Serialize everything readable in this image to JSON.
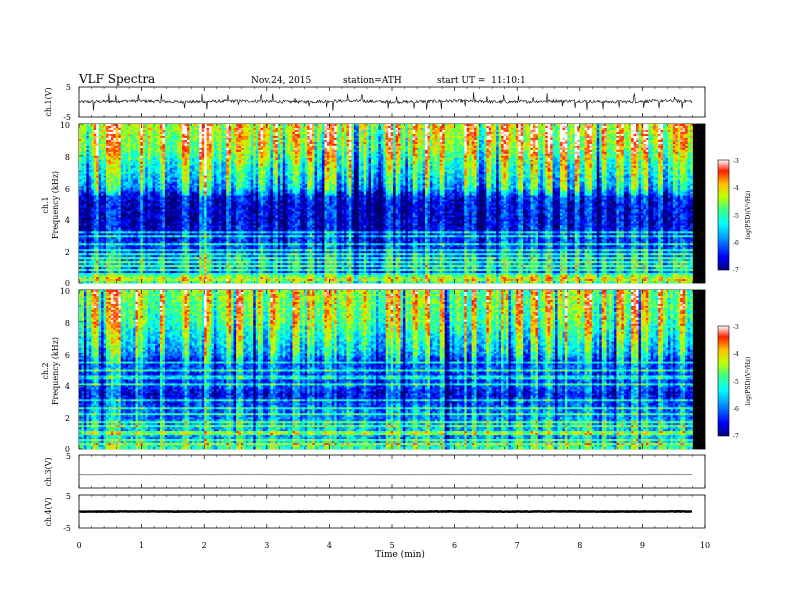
{
  "header": {
    "title": "VLF Spectra",
    "date": "Nov.24, 2015",
    "station": "station=ATH",
    "start": "start UT =  11:10:1"
  },
  "chart_data": {
    "type": "heatmap",
    "x": {
      "label": "Time (min)",
      "range": [
        0,
        10
      ],
      "ticks": [
        "0",
        "1",
        "2",
        "3",
        "4",
        "5",
        "6",
        "7",
        "8",
        "9",
        "10"
      ],
      "data_end": 9.8
    },
    "panels": [
      {
        "id": "ch1_wave",
        "type": "line",
        "ylabel": "ch.1(V)",
        "ylim": [
          -5,
          5
        ],
        "ticks": [
          "5",
          "-5"
        ],
        "baseline": 0.2,
        "noise_amplitude": 1.0,
        "spike_amplitude": 2.5
      },
      {
        "id": "ch1_spec",
        "type": "heatmap",
        "ylabel": "ch.1",
        "ylabel2": "Frequency (kHz)",
        "ylim": [
          0,
          10
        ],
        "ticks": [
          "0",
          "2",
          "4",
          "6",
          "8",
          "10"
        ],
        "profile": [
          {
            "f": 0.0,
            "v": -4.8
          },
          {
            "f": 0.3,
            "v": -5.5
          },
          {
            "f": 0.6,
            "v": -6.2
          },
          {
            "f": 1.0,
            "v": -5.8
          },
          {
            "f": 1.5,
            "v": -5.9
          },
          {
            "f": 2.0,
            "v": -6.3
          },
          {
            "f": 2.5,
            "v": -6.4
          },
          {
            "f": 3.0,
            "v": -6.5
          },
          {
            "f": 3.3,
            "v": -6.7
          },
          {
            "f": 4.0,
            "v": -6.8
          },
          {
            "f": 5.0,
            "v": -6.75
          },
          {
            "f": 5.6,
            "v": -6.5
          },
          {
            "f": 5.9,
            "v": -5.9
          },
          {
            "f": 6.5,
            "v": -5.6
          },
          {
            "f": 7.5,
            "v": -5.2
          },
          {
            "f": 8.5,
            "v": -4.6
          },
          {
            "f": 10.0,
            "v": -4.3
          }
        ],
        "line_freqs": [
          0.2,
          0.35,
          0.5,
          0.8,
          1.1,
          1.3,
          1.6,
          1.8,
          2.1,
          2.4,
          2.9,
          3.2
        ]
      },
      {
        "id": "ch2_spec",
        "type": "heatmap",
        "ylabel": "ch.2",
        "ylabel2": "Frequency (kHz)",
        "ylim": [
          0,
          10
        ],
        "ticks": [
          "0",
          "2",
          "4",
          "6",
          "8",
          "10"
        ],
        "profile": [
          {
            "f": 0.0,
            "v": -5.0
          },
          {
            "f": 0.3,
            "v": -5.3
          },
          {
            "f": 0.6,
            "v": -5.9
          },
          {
            "f": 1.0,
            "v": -5.6
          },
          {
            "f": 1.5,
            "v": -5.8
          },
          {
            "f": 2.0,
            "v": -6.0
          },
          {
            "f": 2.5,
            "v": -6.1
          },
          {
            "f": 3.0,
            "v": -6.4
          },
          {
            "f": 3.5,
            "v": -6.6
          },
          {
            "f": 4.0,
            "v": -6.2
          },
          {
            "f": 4.5,
            "v": -6.5
          },
          {
            "f": 5.0,
            "v": -6.1
          },
          {
            "f": 5.5,
            "v": -6.4
          },
          {
            "f": 6.0,
            "v": -5.8
          },
          {
            "f": 7.0,
            "v": -5.4
          },
          {
            "f": 8.0,
            "v": -4.9
          },
          {
            "f": 10.0,
            "v": -4.6
          }
        ],
        "line_freqs": [
          0.3,
          0.6,
          1.0,
          1.4,
          1.7,
          2.2,
          2.6,
          3.1,
          4.1,
          4.5,
          4.9,
          5.4
        ]
      },
      {
        "id": "ch3_wave",
        "type": "line",
        "ylabel": "ch.3(V)",
        "ylim": [
          -5,
          5
        ],
        "ticks": [
          "5"
        ],
        "baseline": -1.0,
        "noise_amplitude": 0.05,
        "spike_amplitude": 0
      },
      {
        "id": "ch4_wave",
        "type": "line",
        "ylabel": "ch.4(V)",
        "ylim": [
          -5,
          5
        ],
        "ticks": [
          "5",
          "-5"
        ],
        "baseline": 0.0,
        "noise_amplitude": 0.15,
        "spike_amplitude": 0
      }
    ],
    "colorbar": {
      "label": "log(PSD)(V²/Hz)",
      "range": [
        -7,
        -3
      ],
      "ticks": [
        "-3",
        "-4",
        "-5",
        "-6",
        "-7"
      ]
    },
    "spike_times": [
      0.23,
      0.48,
      0.59,
      0.95,
      1.32,
      1.69,
      1.97,
      2.04,
      2.38,
      2.55,
      2.91,
      3.09,
      3.45,
      3.68,
      3.96,
      4.06,
      4.29,
      4.52,
      4.94,
      5.07,
      5.35,
      5.55,
      5.79,
      6.17,
      6.3,
      6.52,
      6.78,
      7.02,
      7.25,
      7.48,
      7.72,
      7.93,
      8.11,
      8.37,
      8.63,
      8.87,
      9.02,
      9.27,
      9.51,
      9.64
    ],
    "colors": {
      "colormap": [
        "#00007f",
        "#0000ff",
        "#00a0ff",
        "#00ffff",
        "#00ff80",
        "#80ff00",
        "#ffff00",
        "#ff8000",
        "#ff0000",
        "#7f0000"
      ]
    }
  }
}
